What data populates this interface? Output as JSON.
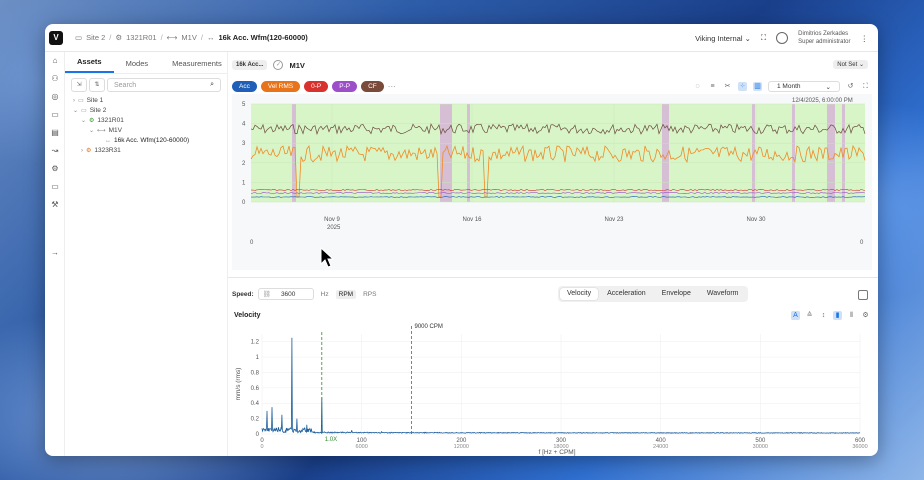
{
  "breadcrumb": {
    "site": "Site 2",
    "asset": "1321R01",
    "point": "M1V",
    "current": "16k Acc. Wfm(120-60000)"
  },
  "org": {
    "name": "Viking Internal"
  },
  "user": {
    "name": "Dimitrios Zerkades",
    "role": "Super administrator"
  },
  "sidebar": {
    "tabs": [
      "Assets",
      "Modes",
      "Measurements"
    ],
    "search_placeholder": "Search",
    "tree": [
      {
        "label": "Site 1",
        "level": 0
      },
      {
        "label": "Site 2",
        "level": 0
      },
      {
        "label": "1321R01",
        "level": 1
      },
      {
        "label": "M1V",
        "level": 2
      },
      {
        "label": "16k Acc. Wfm(120-60000)",
        "level": 3
      },
      {
        "label": "1323R31",
        "level": 1
      }
    ]
  },
  "asset_bar": {
    "chip": "16k Acc...",
    "name": "M1V",
    "status": "Not Set"
  },
  "pills": [
    {
      "label": "Acc",
      "color": "#1f5fb8"
    },
    {
      "label": "Vel RMS",
      "color": "#e8731a"
    },
    {
      "label": "0-P",
      "color": "#d8312e"
    },
    {
      "label": "P-P",
      "color": "#9c4fc9"
    },
    {
      "label": "CF",
      "color": "#7a4a3a"
    }
  ],
  "more_label": "···",
  "period": "1 Month",
  "trend": {
    "timestamp": "12/4/2025, 6:00:00 PM",
    "y_ticks": [
      "5",
      "4",
      "3",
      "2",
      "1",
      "0"
    ],
    "x_ticks": [
      "Nov 9",
      "Nov 16",
      "Nov 23",
      "Nov 30"
    ],
    "year": "2025",
    "left_zero": "0",
    "right_zero": "0"
  },
  "speed": {
    "label": "Speed:",
    "value": "3600",
    "units": [
      "Hz",
      "RPM",
      "RPS"
    ],
    "active_unit": "RPM"
  },
  "views": [
    "Velocity",
    "Acceleration",
    "Envelope",
    "Waveform"
  ],
  "active_view": "Velocity",
  "chart_data": {
    "type": "line",
    "title": "Velocity",
    "ylabel": "mm/s (rms)",
    "xlabel": "f [Hz + CPM]",
    "y_ticks": [
      "1.2",
      "1",
      "0.8",
      "0.6",
      "0.4",
      "0.2",
      "0"
    ],
    "x_ticks_hz": [
      "0",
      "100",
      "200",
      "300",
      "400",
      "500",
      "600"
    ],
    "x_ticks_cpm": [
      "0",
      "6000",
      "12000",
      "18000",
      "24000",
      "30000",
      "36000"
    ],
    "xlim": [
      0,
      600
    ],
    "ylim": [
      0,
      1.3
    ],
    "marker_green": {
      "label": "1.0X",
      "x": 60
    },
    "marker_red": {
      "label": "9000 CPM",
      "x": 150
    },
    "peaks": [
      [
        30,
        1.25
      ],
      [
        60,
        0.48
      ],
      [
        10,
        0.35
      ],
      [
        20,
        0.25
      ],
      [
        35,
        0.2
      ],
      [
        45,
        0.12
      ],
      [
        5,
        0.3
      ],
      [
        90,
        0.05
      ],
      [
        120,
        0.03
      ]
    ]
  }
}
